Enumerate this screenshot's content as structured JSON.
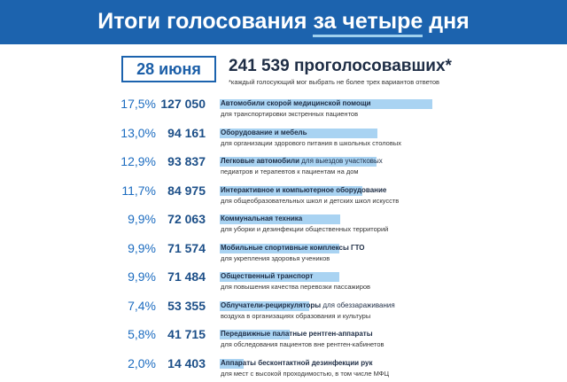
{
  "header": {
    "title_part1": "Итоги голосования ",
    "title_highlight": "за четыре",
    "title_part2": " дня"
  },
  "date_label": "28 июня",
  "total_label": "241 539 проголосовавших*",
  "footnote": "*каждый голосующий мог выбрать не более трех вариантов ответов",
  "colors": {
    "header_bg": "#1c63ae",
    "bar": "#a9d3f2",
    "percent_text": "#1c6cc0",
    "votes_text": "#1c4f88"
  },
  "chart_data": {
    "type": "bar",
    "orientation": "horizontal",
    "rows": [
      {
        "percent": "17,5%",
        "votes": "127 050",
        "value": 127050,
        "name": "Автомобили скорой медицинской помощи",
        "name_rest": "",
        "desc": "для транспортировки экстренных пациентов"
      },
      {
        "percent": "13,0%",
        "votes": "94 161",
        "value": 94161,
        "name": "Оборудование и мебель",
        "name_rest": "",
        "desc": "для организации здорового питания в школьных столовых"
      },
      {
        "percent": "12,9%",
        "votes": "93 837",
        "value": 93837,
        "name": "Легковые автомобили",
        "name_rest": " для выездов участковых",
        "desc": "педиатров и терапевтов к пациентам на дом"
      },
      {
        "percent": "11,7%",
        "votes": "84 975",
        "value": 84975,
        "name": "Интерактивное и компьютерное оборудование",
        "name_rest": "",
        "desc": "для общеобразовательных школ и детских школ искусств"
      },
      {
        "percent": "9,9%",
        "votes": "72 063",
        "value": 72063,
        "name": "Коммунальная техника",
        "name_rest": "",
        "desc": "для уборки и дезинфекции общественных территорий"
      },
      {
        "percent": "9,9%",
        "votes": "71 574",
        "value": 71574,
        "name": "Мобильные спортивные комплексы ГТО",
        "name_rest": "",
        "desc": "для укрепления здоровья учеников"
      },
      {
        "percent": "9,9%",
        "votes": "71 484",
        "value": 71484,
        "name": "Общественный транспорт",
        "name_rest": "",
        "desc": "для повышения качества перевозки пассажиров"
      },
      {
        "percent": "7,4%",
        "votes": "53 355",
        "value": 53355,
        "name": "Облучатели-рециркуляторы",
        "name_rest": " для обеззараживания",
        "desc": "воздуха в организациях образования и культуры"
      },
      {
        "percent": "5,8%",
        "votes": "41 715",
        "value": 41715,
        "name": "Передвижные палатные рентген-аппараты",
        "name_rest": "",
        "desc": "для обследования пациентов вне рентген-кабинетов"
      },
      {
        "percent": "2,0%",
        "votes": "14 403",
        "value": 14403,
        "name": "Аппараты бесконтактной дезинфекции рук",
        "name_rest": "",
        "desc": "для мест с высокой проходимостью, в том числе МФЦ"
      }
    ]
  }
}
